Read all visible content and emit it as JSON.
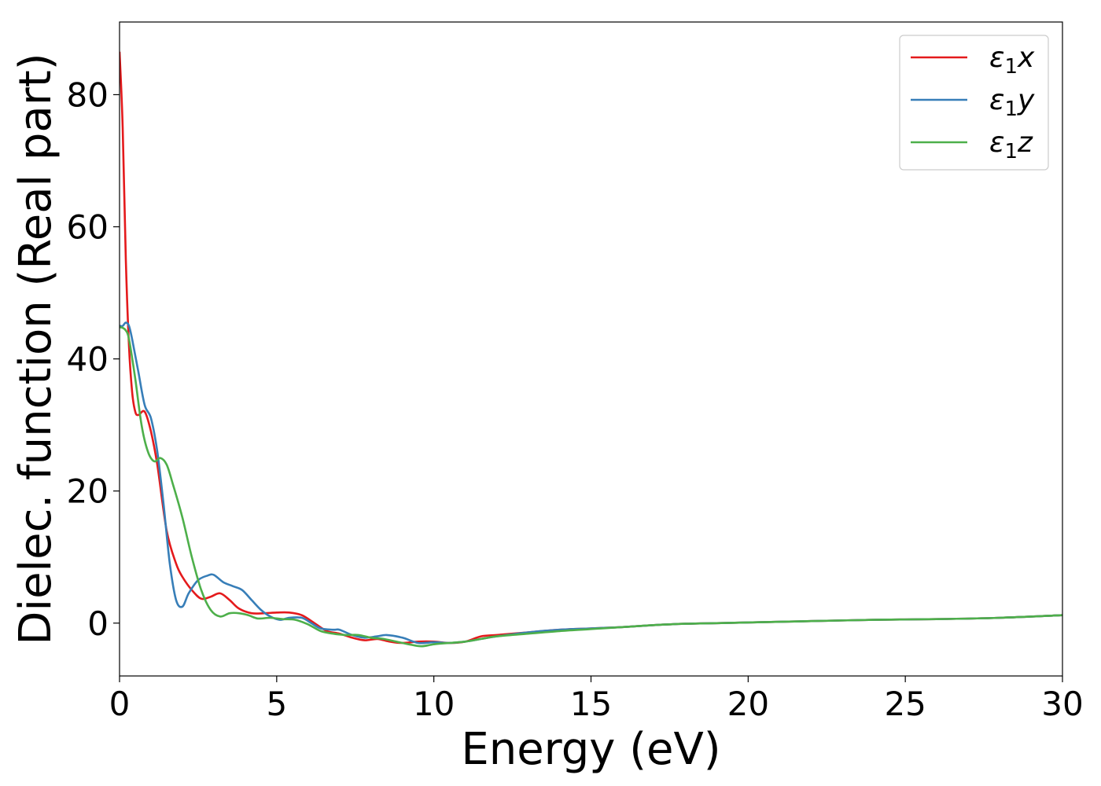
{
  "chart_data": {
    "type": "line",
    "title": "",
    "xlabel": "Energy (eV)",
    "ylabel": "Dielec. function (Real part)",
    "xlim": [
      0,
      30
    ],
    "ylim": [
      -8,
      91
    ],
    "xticks": [
      0,
      5,
      10,
      15,
      20,
      25,
      30
    ],
    "yticks": [
      0,
      20,
      40,
      60,
      80
    ],
    "grid": false,
    "legend_position": "top-right",
    "series": [
      {
        "name": "ε1x",
        "legend": {
          "base": "ε",
          "sub": "1",
          "suffix": "x"
        },
        "color": "#e41a1c",
        "x": [
          0,
          0.1,
          0.2,
          0.3,
          0.4,
          0.5,
          0.6,
          0.8,
          1.0,
          1.2,
          1.5,
          1.8,
          2.0,
          2.3,
          2.6,
          2.9,
          3.2,
          3.5,
          3.8,
          4.2,
          4.6,
          5.0,
          5.4,
          5.8,
          6.2,
          6.6,
          7.0,
          7.4,
          7.8,
          8.2,
          8.6,
          9.0,
          9.5,
          10.0,
          10.5,
          11.0,
          11.5,
          12.0,
          13.0,
          14.0,
          15.0,
          16.0,
          17.0,
          18.0,
          19.0,
          20.0,
          22.0,
          24.0,
          26.0,
          28.0,
          30.0
        ],
        "y": [
          86.5,
          75,
          55,
          42,
          35,
          32,
          31.5,
          32,
          29,
          24,
          14,
          9,
          7,
          5,
          3.7,
          4,
          4.5,
          3.5,
          2.2,
          1.5,
          1.5,
          1.6,
          1.6,
          1.2,
          0,
          -1.2,
          -1.6,
          -2.2,
          -2.6,
          -2.4,
          -2.8,
          -3.0,
          -2.8,
          -2.8,
          -3.0,
          -2.8,
          -2.0,
          -1.8,
          -1.4,
          -1.0,
          -0.8,
          -0.6,
          -0.3,
          -0.1,
          0.0,
          0.1,
          0.3,
          0.5,
          0.6,
          0.8,
          1.2
        ]
      },
      {
        "name": "ε1y",
        "legend": {
          "base": "ε",
          "sub": "1",
          "suffix": "y"
        },
        "color": "#377eb8",
        "x": [
          0,
          0.1,
          0.2,
          0.3,
          0.4,
          0.6,
          0.8,
          1.0,
          1.2,
          1.4,
          1.6,
          1.8,
          2.0,
          2.2,
          2.5,
          2.8,
          3.0,
          3.3,
          3.6,
          3.9,
          4.2,
          4.5,
          4.8,
          5.1,
          5.4,
          5.8,
          6.1,
          6.4,
          6.8,
          7.0,
          7.4,
          7.8,
          8.2,
          8.5,
          9.0,
          9.5,
          10.0,
          10.5,
          11.0,
          11.5,
          12.0,
          13.0,
          14.0,
          15.0,
          16.0,
          17.0,
          18.0,
          19.0,
          20.0,
          22.0,
          24.0,
          26.0,
          28.0,
          30.0
        ],
        "y": [
          45,
          45,
          45.5,
          45,
          43,
          38,
          33,
          31,
          26,
          18,
          9,
          3.5,
          2.5,
          4.5,
          6.5,
          7.2,
          7.3,
          6.2,
          5.6,
          5.0,
          3.5,
          2.0,
          1.0,
          0.5,
          0.8,
          0.8,
          0,
          -0.8,
          -1.0,
          -1.0,
          -1.8,
          -2.2,
          -2.0,
          -1.8,
          -2.2,
          -3.0,
          -2.9,
          -3.0,
          -2.8,
          -2.4,
          -2.0,
          -1.4,
          -1.0,
          -0.8,
          -0.6,
          -0.3,
          -0.1,
          0.0,
          0.1,
          0.3,
          0.5,
          0.6,
          0.8,
          1.2
        ]
      },
      {
        "name": "ε1z",
        "legend": {
          "base": "ε",
          "sub": "1",
          "suffix": "z"
        },
        "color": "#4daf4a",
        "x": [
          0,
          0.1,
          0.2,
          0.3,
          0.5,
          0.7,
          0.9,
          1.1,
          1.3,
          1.5,
          1.7,
          2.0,
          2.3,
          2.6,
          2.9,
          3.2,
          3.5,
          3.8,
          4.1,
          4.4,
          4.8,
          5.2,
          5.6,
          6.0,
          6.4,
          6.8,
          7.2,
          7.6,
          8.0,
          8.4,
          8.8,
          9.2,
          9.6,
          10.0,
          10.5,
          11.0,
          11.5,
          12.0,
          13.0,
          14.0,
          15.0,
          16.0,
          17.0,
          18.0,
          19.0,
          20.0,
          22.0,
          24.0,
          26.0,
          28.0,
          30.0
        ],
        "y": [
          44.8,
          44.7,
          44.3,
          43,
          37,
          30,
          26,
          24.5,
          25,
          24,
          21,
          16,
          10,
          5,
          2,
          1,
          1.5,
          1.5,
          1.2,
          0.7,
          0.8,
          0.6,
          0.5,
          -0.2,
          -1.2,
          -1.6,
          -1.8,
          -1.8,
          -2.2,
          -2.4,
          -2.8,
          -3.2,
          -3.5,
          -3.2,
          -3.0,
          -2.8,
          -2.4,
          -2.0,
          -1.6,
          -1.2,
          -0.9,
          -0.6,
          -0.3,
          -0.1,
          0.0,
          0.1,
          0.3,
          0.5,
          0.6,
          0.8,
          1.2
        ]
      }
    ]
  }
}
